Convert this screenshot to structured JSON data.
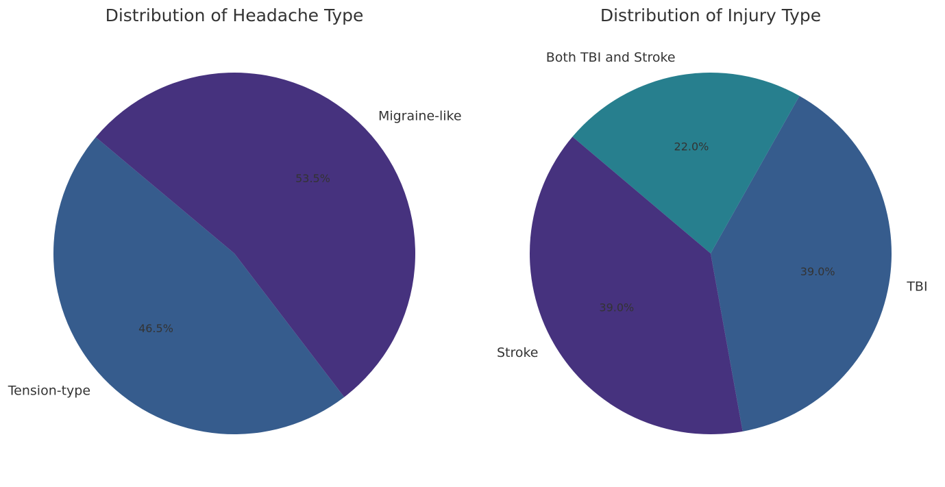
{
  "chart_data": [
    {
      "type": "pie",
      "title": "Distribution of Headache Type",
      "categories": [
        "Tension-type",
        "Migraine-like"
      ],
      "values": [
        46.5,
        53.5
      ],
      "percent_labels": [
        "46.5%",
        "53.5%"
      ],
      "colors": [
        "#365c8d",
        "#46327e"
      ],
      "start_angle_deg": 140,
      "direction": "counterclockwise"
    },
    {
      "type": "pie",
      "title": "Distribution of Injury Type",
      "categories": [
        "TBI",
        "Both TBI and Stroke",
        "Stroke"
      ],
      "values": [
        39.0,
        22.0,
        39.0
      ],
      "percent_labels": [
        "39.0%",
        "22.0%",
        "39.0%"
      ],
      "colors": [
        "#365c8d",
        "#277f8e",
        "#46327e"
      ],
      "start_angle_deg": -79.8,
      "direction": "counterclockwise"
    }
  ]
}
